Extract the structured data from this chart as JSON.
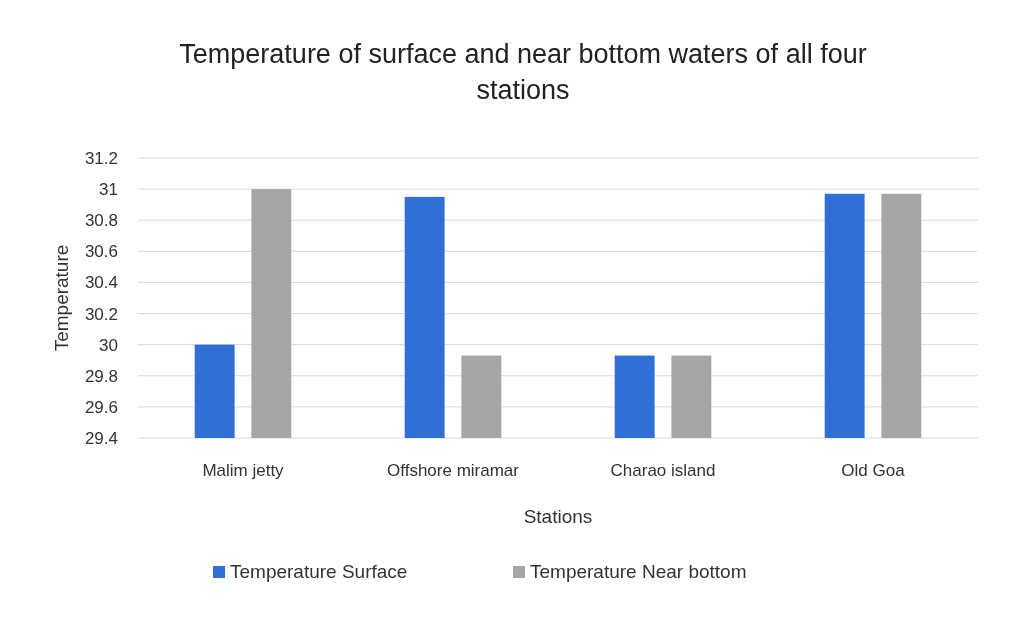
{
  "chart_data": {
    "type": "bar",
    "title": "Temperature of surface and near bottom waters of all four stations",
    "xlabel": "Stations",
    "ylabel": "Temperature",
    "categories": [
      "Malim jetty",
      "Offshore miramar",
      "Charao island",
      "Old Goa"
    ],
    "series": [
      {
        "name": "Temperature Surface",
        "color": "#2f6fd6",
        "values": [
          30,
          30.95,
          29.93,
          30.97
        ]
      },
      {
        "name": "Temperature Near bottom",
        "color": "#a6a6a6",
        "values": [
          31,
          29.93,
          29.93,
          30.97
        ]
      }
    ],
    "ylim": [
      29.4,
      31.2
    ],
    "yticks": [
      {
        "value": 29.4,
        "label": "29.4"
      },
      {
        "value": 29.6,
        "label": "29.6"
      },
      {
        "value": 29.8,
        "label": "29.8"
      },
      30,
      {
        "value": 30.2,
        "label": "30.2"
      },
      {
        "value": 30.4,
        "label": "30.4"
      },
      {
        "value": 30.6,
        "label": "30.6"
      },
      {
        "value": 30.8,
        "label": "30.8"
      },
      31,
      {
        "value": 31.2,
        "label": "31.2"
      }
    ],
    "grid": "y",
    "legend": "bottom"
  }
}
